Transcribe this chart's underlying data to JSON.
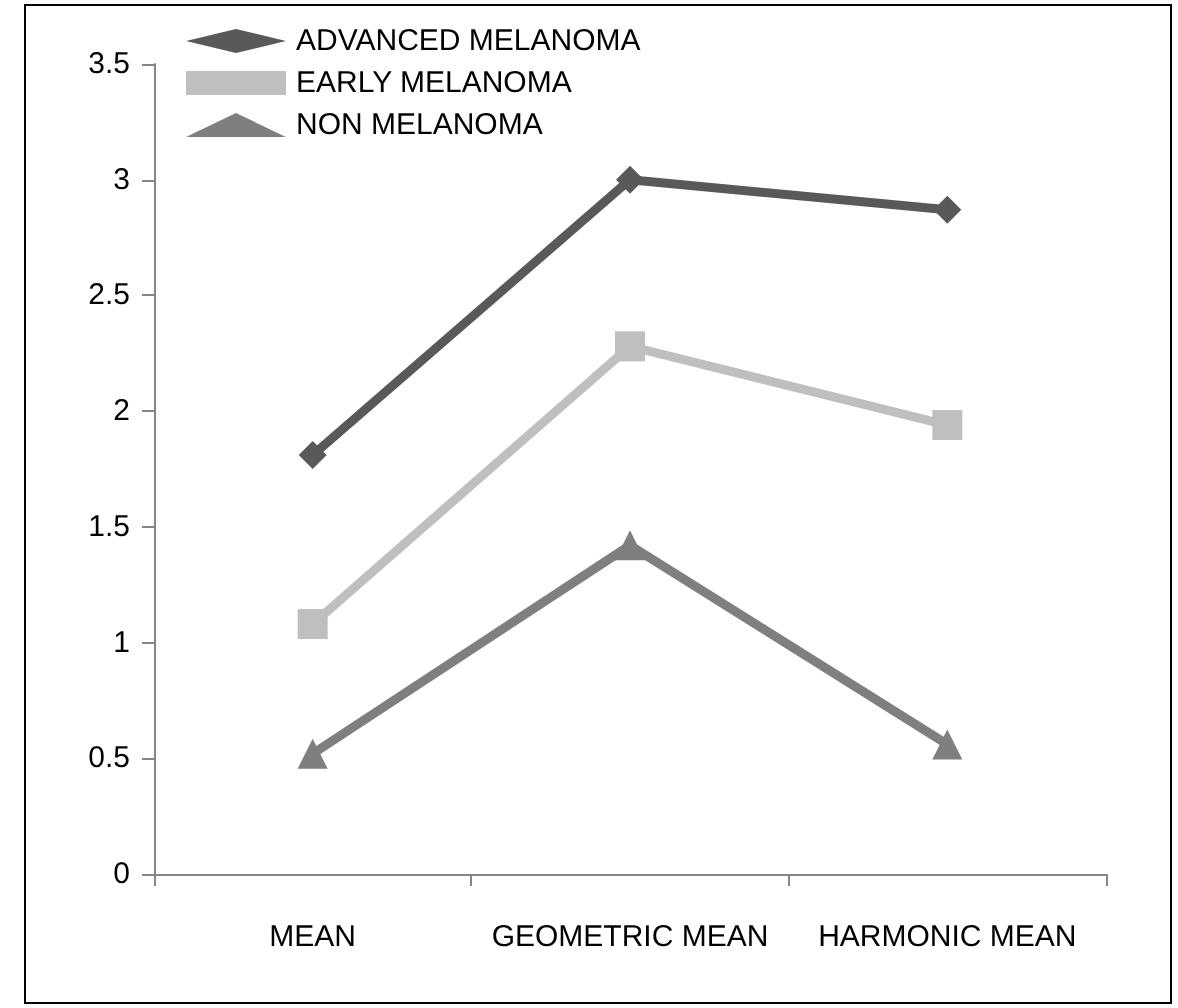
{
  "chart_data": {
    "type": "line",
    "categories": [
      "MEAN",
      "GEOMETRIC MEAN",
      "HARMONIC MEAN"
    ],
    "series": [
      {
        "name": "ADVANCED MELANOMA",
        "color": "#595959",
        "marker": "diamond",
        "values": [
          1.81,
          3.0,
          2.87
        ]
      },
      {
        "name": "EARLY MELANOMA",
        "color": "#bfbfbf",
        "marker": "square",
        "values": [
          1.08,
          2.28,
          1.94
        ]
      },
      {
        "name": "NON MELANOMA",
        "color": "#7f7f7f",
        "marker": "triangle",
        "values": [
          0.52,
          1.42,
          0.56
        ]
      }
    ],
    "ylim": [
      0,
      3.5
    ],
    "yticks": [
      0,
      0.5,
      1,
      1.5,
      2,
      2.5,
      3,
      3.5
    ],
    "grid": false,
    "legend": "top left"
  }
}
